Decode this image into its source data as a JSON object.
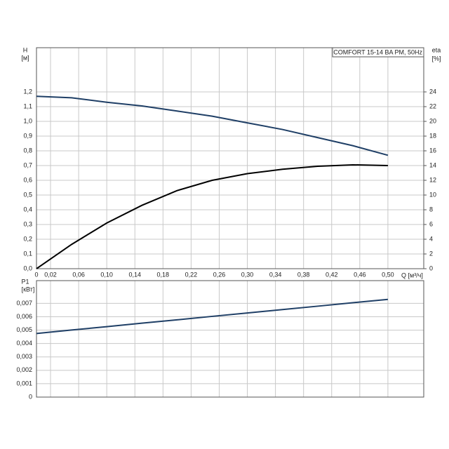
{
  "chart_data": [
    {
      "type": "line",
      "title": "COMFORT 15-14 BA PM, 50Hz",
      "x_label": "Q [м³/ч]",
      "y_label": "H",
      "y_unit": "[м]",
      "y2_label": "eta",
      "y2_unit": "[%]",
      "x": [
        0,
        0.05,
        0.1,
        0.15,
        0.2,
        0.25,
        0.3,
        0.35,
        0.4,
        0.45,
        0.5
      ],
      "series": [
        {
          "name": "H",
          "color": "#1f3f66",
          "values": [
            1.17,
            1.16,
            1.13,
            1.105,
            1.07,
            1.035,
            0.99,
            0.945,
            0.89,
            0.835,
            0.77
          ]
        },
        {
          "name": "eta",
          "color": "#000000",
          "axis": "y2",
          "values": [
            0,
            3.3,
            6.2,
            8.6,
            10.6,
            12.0,
            12.9,
            13.5,
            13.9,
            14.1,
            14.0
          ]
        }
      ],
      "xlim": [
        0,
        0.551
      ],
      "xticks": [
        0,
        {
          "value": 0.02,
          "label": "0,02"
        },
        {
          "value": 0.06,
          "label": "0,06"
        },
        {
          "value": 0.1,
          "label": "0,10"
        },
        {
          "value": 0.14,
          "label": "0,14"
        },
        {
          "value": 0.18,
          "label": "0,18"
        },
        {
          "value": 0.22,
          "label": "0,22"
        },
        {
          "value": 0.26,
          "label": "0,26"
        },
        {
          "value": 0.3,
          "label": "0,30"
        },
        {
          "value": 0.34,
          "label": "0,34"
        },
        {
          "value": 0.38,
          "label": "0,38"
        },
        {
          "value": 0.42,
          "label": "0,42"
        },
        {
          "value": 0.46,
          "label": "0,46"
        },
        {
          "value": 0.5,
          "label": "0,50"
        }
      ],
      "ylim": [
        0,
        1.5
      ],
      "yticks": [
        {
          "value": 0,
          "label": "0,0"
        },
        {
          "value": 0.1,
          "label": "0,1"
        },
        {
          "value": 0.2,
          "label": "0,2"
        },
        {
          "value": 0.3,
          "label": "0,3"
        },
        {
          "value": 0.4,
          "label": "0,4"
        },
        {
          "value": 0.5,
          "label": "0,5"
        },
        {
          "value": 0.6,
          "label": "0,6"
        },
        {
          "value": 0.7,
          "label": "0,7"
        },
        {
          "value": 0.8,
          "label": "0,8"
        },
        {
          "value": 0.9,
          "label": "0,9"
        },
        {
          "value": 1.0,
          "label": "1,0"
        },
        {
          "value": 1.1,
          "label": "1,1"
        },
        {
          "value": 1.2,
          "label": "1,2"
        }
      ],
      "y2lim": [
        0,
        30
      ],
      "y2ticks": [
        0,
        2,
        4,
        6,
        8,
        10,
        12,
        14,
        16,
        18,
        20,
        22,
        24
      ],
      "grid": true
    },
    {
      "type": "line",
      "y_label": "P1",
      "y_unit": "[кВт]",
      "x": [
        0,
        0.05,
        0.1,
        0.15,
        0.2,
        0.25,
        0.3,
        0.35,
        0.4,
        0.45,
        0.5
      ],
      "series": [
        {
          "name": "P1",
          "color": "#1f3f66",
          "values": [
            0.00475,
            0.00501,
            0.00526,
            0.00552,
            0.00577,
            0.00603,
            0.00628,
            0.00654,
            0.00679,
            0.00705,
            0.0073
          ]
        }
      ],
      "xlim": [
        0,
        0.551
      ],
      "ylim": [
        0,
        0.0087
      ],
      "yticks": [
        0,
        {
          "value": 0.001,
          "label": "0,001"
        },
        {
          "value": 0.002,
          "label": "0,002"
        },
        {
          "value": 0.003,
          "label": "0,003"
        },
        {
          "value": 0.004,
          "label": "0,004"
        },
        {
          "value": 0.005,
          "label": "0,005"
        },
        {
          "value": 0.006,
          "label": "0,006"
        },
        {
          "value": 0.007,
          "label": "0,007"
        }
      ],
      "grid": true
    }
  ]
}
